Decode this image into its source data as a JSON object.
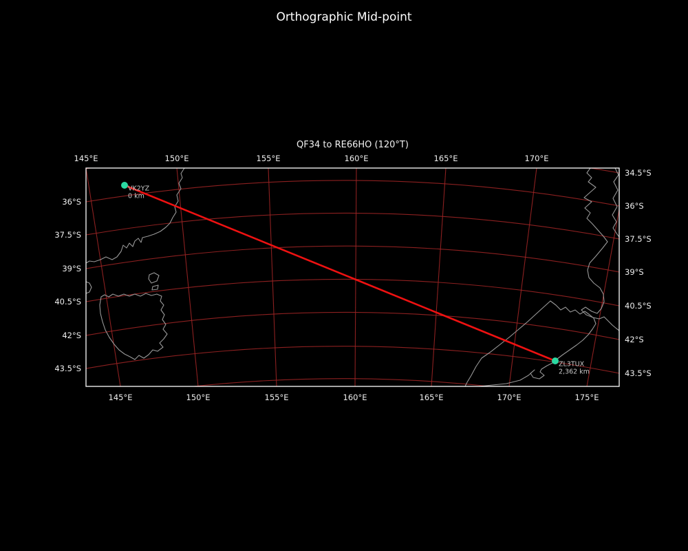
{
  "figure_title": "Orthographic Mid-point",
  "map": {
    "title": "QF34 to RE66HO (120°T)",
    "top_axis_ticks": [
      "145°E",
      "150°E",
      "155°E",
      "160°E",
      "165°E",
      "170°E"
    ],
    "bottom_axis_ticks": [
      "145°E",
      "150°E",
      "155°E",
      "160°E",
      "165°E",
      "170°E",
      "175°E"
    ],
    "left_axis_ticks": [
      "36°S",
      "37.5°S",
      "39°S",
      "40.5°S",
      "42°S",
      "43.5°S"
    ],
    "right_axis_ticks": [
      "34.5°S",
      "36°S",
      "37.5°S",
      "39°S",
      "40.5°S",
      "42°S",
      "43.5°S"
    ],
    "stations": [
      {
        "callsign": "VK2YZ",
        "distance_label": "0 km"
      },
      {
        "callsign": "ZL3TUX",
        "distance_label": "2,362 km"
      }
    ]
  },
  "colors": {
    "background": "#000000",
    "border": "#ffffff",
    "graticule": "#9b2424",
    "great_circle": "#ee1111",
    "station_marker": "#2bd9a2",
    "coastline": "#999999",
    "tick_text": "#eeeeee",
    "station_text": "#c9c9c9",
    "title_text": "#ffffff"
  },
  "chart_data": {
    "type": "map",
    "projection": "orthographic-midpoint",
    "figure_title": "Orthographic Mid-point",
    "title": "QF34 to RE66HO (120°T)",
    "graticule": {
      "longitude_ticks_deg_E": [
        145,
        150,
        155,
        160,
        165,
        170,
        175
      ],
      "latitude_ticks_deg_S": [
        34.5,
        36,
        37.5,
        39,
        40.5,
        42,
        43.5
      ],
      "grid_on": true
    },
    "path": {
      "from_grid": "QF34",
      "to_grid": "RE66HO",
      "bearing": "120°T",
      "endpoint_distances": [
        "0 km",
        "2,362 km"
      ]
    },
    "stations": [
      {
        "callsign": "VK2YZ",
        "distance_label": "0 km"
      },
      {
        "callsign": "ZL3TUX",
        "distance_label": "2,362 km"
      }
    ]
  }
}
